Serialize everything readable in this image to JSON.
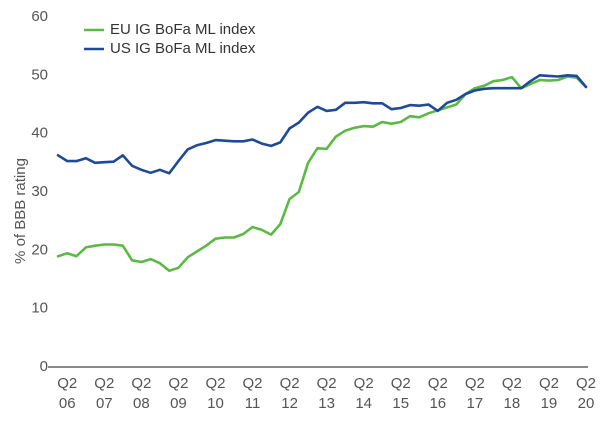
{
  "chart_data": {
    "type": "line",
    "title": "",
    "xlabel": "",
    "ylabel": "% of BBB rating",
    "ylim": [
      0,
      60
    ],
    "yticks": [
      0,
      10,
      20,
      30,
      40,
      50,
      60
    ],
    "grid": false,
    "legend_position": "top-left",
    "x_tick_labels": [
      {
        "q": "Q2",
        "yr": "06"
      },
      {
        "q": "Q2",
        "yr": "07"
      },
      {
        "q": "Q2",
        "yr": "08"
      },
      {
        "q": "Q2",
        "yr": "09"
      },
      {
        "q": "Q2",
        "yr": "10"
      },
      {
        "q": "Q2",
        "yr": "11"
      },
      {
        "q": "Q2",
        "yr": "12"
      },
      {
        "q": "Q2",
        "yr": "13"
      },
      {
        "q": "Q2",
        "yr": "14"
      },
      {
        "q": "Q2",
        "yr": "15"
      },
      {
        "q": "Q2",
        "yr": "16"
      },
      {
        "q": "Q2",
        "yr": "17"
      },
      {
        "q": "Q2",
        "yr": "18"
      },
      {
        "q": "Q2",
        "yr": "19"
      },
      {
        "q": "Q2",
        "yr": "20"
      }
    ],
    "x_tick_positions": [
      2006.25,
      2007.25,
      2008.25,
      2009.25,
      2010.25,
      2011.25,
      2012.25,
      2013.25,
      2014.25,
      2015.25,
      2016.25,
      2017.25,
      2018.25,
      2019.25,
      2020.25
    ],
    "xlim": [
      2006.0,
      2020.25
    ],
    "series": [
      {
        "name": "EU IG BoFa ML index",
        "color": "#5cb946",
        "x": [
          2006.0,
          2006.25,
          2006.5,
          2006.75,
          2007.0,
          2007.25,
          2007.5,
          2007.75,
          2008.0,
          2008.25,
          2008.5,
          2008.75,
          2009.0,
          2009.25,
          2009.5,
          2009.75,
          2010.0,
          2010.25,
          2010.5,
          2010.75,
          2011.0,
          2011.25,
          2011.5,
          2011.75,
          2012.0,
          2012.25,
          2012.5,
          2012.75,
          2013.0,
          2013.25,
          2013.5,
          2013.75,
          2014.0,
          2014.25,
          2014.5,
          2014.75,
          2015.0,
          2015.25,
          2015.5,
          2015.75,
          2016.0,
          2016.25,
          2016.5,
          2016.75,
          2017.0,
          2017.25,
          2017.5,
          2017.75,
          2018.0,
          2018.25,
          2018.5,
          2018.75,
          2019.0,
          2019.25,
          2019.5,
          2019.75,
          2020.0,
          2020.25
        ],
        "values": [
          19.0,
          19.5,
          19.0,
          20.5,
          20.8,
          21.0,
          21.0,
          20.8,
          18.3,
          18.0,
          18.5,
          17.8,
          16.5,
          17.0,
          18.8,
          19.8,
          20.8,
          22.0,
          22.2,
          22.2,
          22.8,
          24.0,
          23.5,
          22.7,
          24.5,
          28.8,
          30.0,
          35.0,
          37.5,
          37.4,
          39.5,
          40.5,
          41.0,
          41.3,
          41.2,
          42.0,
          41.7,
          42.0,
          43.0,
          42.8,
          43.5,
          44.0,
          44.5,
          45.0,
          46.8,
          47.8,
          48.2,
          49.0,
          49.2,
          49.7,
          47.8,
          48.5,
          49.2,
          49.1,
          49.2,
          49.8,
          49.6,
          48.0
        ]
      },
      {
        "name": "US IG BoFa ML index",
        "color": "#1f4a96",
        "x": [
          2006.0,
          2006.25,
          2006.5,
          2006.75,
          2007.0,
          2007.25,
          2007.5,
          2007.75,
          2008.0,
          2008.25,
          2008.5,
          2008.75,
          2009.0,
          2009.25,
          2009.5,
          2009.75,
          2010.0,
          2010.25,
          2010.5,
          2010.75,
          2011.0,
          2011.25,
          2011.5,
          2011.75,
          2012.0,
          2012.25,
          2012.5,
          2012.75,
          2013.0,
          2013.25,
          2013.5,
          2013.75,
          2014.0,
          2014.25,
          2014.5,
          2014.75,
          2015.0,
          2015.25,
          2015.5,
          2015.75,
          2016.0,
          2016.25,
          2016.5,
          2016.75,
          2017.0,
          2017.25,
          2017.5,
          2017.75,
          2018.0,
          2018.25,
          2018.5,
          2018.75,
          2019.0,
          2019.25,
          2019.5,
          2019.75,
          2020.0,
          2020.25
        ],
        "values": [
          36.3,
          35.3,
          35.3,
          35.8,
          35.0,
          35.1,
          35.2,
          36.3,
          34.5,
          33.8,
          33.3,
          33.8,
          33.2,
          35.3,
          37.3,
          38.0,
          38.4,
          38.9,
          38.8,
          38.7,
          38.7,
          39.0,
          38.3,
          37.9,
          38.5,
          40.9,
          41.9,
          43.6,
          44.6,
          43.9,
          44.1,
          45.3,
          45.3,
          45.4,
          45.2,
          45.2,
          44.2,
          44.4,
          44.9,
          44.8,
          45.0,
          43.9,
          45.3,
          45.8,
          46.8,
          47.4,
          47.7,
          47.8,
          47.8,
          47.8,
          47.8,
          49.0,
          50.0,
          49.9,
          49.8,
          50.0,
          49.9,
          48.0
        ]
      }
    ]
  }
}
